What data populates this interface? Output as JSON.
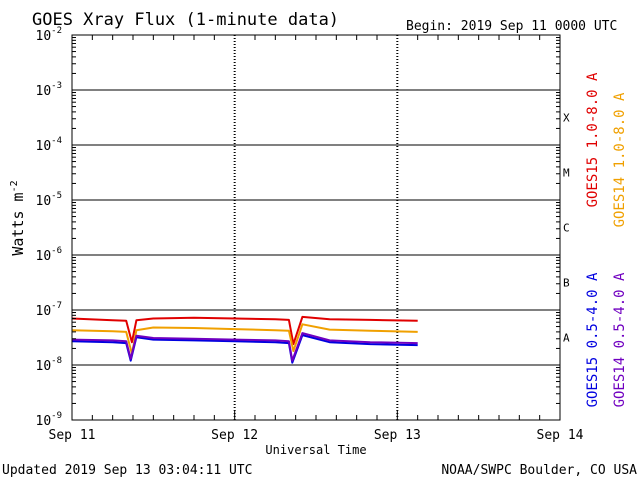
{
  "chart_data": {
    "type": "line",
    "title": "GOES Xray Flux (1-minute data)",
    "begin_label": "Begin:  2019 Sep 11 0000 UTC",
    "xlabel": "Universal Time",
    "ylabel": "Watts m",
    "ylabel_exponent": "-2",
    "x_ticks": [
      "Sep 11",
      "Sep 12",
      "Sep 13",
      "Sep 14"
    ],
    "xlim": [
      "2019-09-11 00:00",
      "2019-09-14 00:00"
    ],
    "y_scale": "log",
    "ylim": [
      1e-09,
      0.01
    ],
    "y_ticks": [
      {
        "mantissa": "10",
        "exp": "-2",
        "value": 0.01
      },
      {
        "mantissa": "10",
        "exp": "-3",
        "value": 0.001
      },
      {
        "mantissa": "10",
        "exp": "-4",
        "value": 0.0001
      },
      {
        "mantissa": "10",
        "exp": "-5",
        "value": 1e-05
      },
      {
        "mantissa": "10",
        "exp": "-6",
        "value": 1e-06
      },
      {
        "mantissa": "10",
        "exp": "-7",
        "value": 1e-07
      },
      {
        "mantissa": "10",
        "exp": "-8",
        "value": 1e-08
      },
      {
        "mantissa": "10",
        "exp": "-9",
        "value": 1e-09
      }
    ],
    "flare_classes": [
      {
        "label": "X",
        "low": 0.0001
      },
      {
        "label": "M",
        "low": 1e-05
      },
      {
        "label": "C",
        "low": 1e-06
      },
      {
        "label": "B",
        "low": 1e-07
      },
      {
        "label": "A",
        "low": 1e-08
      }
    ],
    "grid": true,
    "series": [
      {
        "name": "GOES15 1.0-8.0 A",
        "color": "#e00000",
        "x": [
          "2019-09-11 00:00",
          "2019-09-11 06:00",
          "2019-09-11 08:00",
          "2019-09-11 08:50",
          "2019-09-11 09:30",
          "2019-09-11 12:00",
          "2019-09-11 18:00",
          "2019-09-12 00:00",
          "2019-09-12 06:00",
          "2019-09-12 08:00",
          "2019-09-12 08:40",
          "2019-09-12 10:00",
          "2019-09-12 14:00",
          "2019-09-12 20:00",
          "2019-09-13 03:00"
        ],
        "y": [
          7e-08,
          6.5e-08,
          6.4e-08,
          2.6e-08,
          6.5e-08,
          7e-08,
          7.2e-08,
          7e-08,
          6.8e-08,
          6.6e-08,
          2.4e-08,
          7.5e-08,
          6.8e-08,
          6.6e-08,
          6.4e-08
        ]
      },
      {
        "name": "GOES14 1.0-8.0 A",
        "color": "#f0a000",
        "x": [
          "2019-09-11 00:00",
          "2019-09-11 06:00",
          "2019-09-11 08:00",
          "2019-09-11 08:50",
          "2019-09-11 09:30",
          "2019-09-11 12:00",
          "2019-09-11 18:00",
          "2019-09-12 00:00",
          "2019-09-12 06:00",
          "2019-09-12 08:00",
          "2019-09-12 08:40",
          "2019-09-12 10:00",
          "2019-09-12 14:00",
          "2019-09-12 20:00",
          "2019-09-13 03:00"
        ],
        "y": [
          4.3e-08,
          4.1e-08,
          4e-08,
          1.6e-08,
          4.3e-08,
          4.8e-08,
          4.7e-08,
          4.5e-08,
          4.3e-08,
          4.2e-08,
          1.8e-08,
          5.5e-08,
          4.4e-08,
          4.2e-08,
          4e-08
        ]
      },
      {
        "name": "GOES15 0.5-4.0 A",
        "color": "#0000e0",
        "x": [
          "2019-09-11 00:00",
          "2019-09-11 06:00",
          "2019-09-11 08:00",
          "2019-09-11 08:40",
          "2019-09-11 09:30",
          "2019-09-11 12:00",
          "2019-09-11 18:00",
          "2019-09-12 00:00",
          "2019-09-12 06:00",
          "2019-09-12 08:00",
          "2019-09-12 08:30",
          "2019-09-12 10:00",
          "2019-09-12 14:00",
          "2019-09-12 20:00",
          "2019-09-13 03:00"
        ],
        "y": [
          2.7e-08,
          2.6e-08,
          2.5e-08,
          1.2e-08,
          3.2e-08,
          2.9e-08,
          2.8e-08,
          2.7e-08,
          2.6e-08,
          2.5e-08,
          1.1e-08,
          3.5e-08,
          2.6e-08,
          2.4e-08,
          2.3e-08
        ]
      },
      {
        "name": "GOES14 0.5-4.0 A",
        "color": "#7000c0",
        "x": [
          "2019-09-11 00:00",
          "2019-09-11 06:00",
          "2019-09-11 08:00",
          "2019-09-11 08:40",
          "2019-09-11 09:30",
          "2019-09-11 12:00",
          "2019-09-11 18:00",
          "2019-09-12 00:00",
          "2019-09-12 06:00",
          "2019-09-12 08:00",
          "2019-09-12 08:30",
          "2019-09-12 10:00",
          "2019-09-12 14:00",
          "2019-09-12 20:00",
          "2019-09-13 03:00"
        ],
        "y": [
          2.9e-08,
          2.8e-08,
          2.7e-08,
          1.3e-08,
          3.4e-08,
          3.1e-08,
          3e-08,
          2.9e-08,
          2.8e-08,
          2.7e-08,
          1.2e-08,
          3.8e-08,
          2.8e-08,
          2.6e-08,
          2.5e-08
        ]
      }
    ]
  },
  "footer": {
    "updated": "Updated 2019 Sep 13 03:04:11 UTC",
    "credit": "NOAA/SWPC Boulder, CO USA"
  }
}
